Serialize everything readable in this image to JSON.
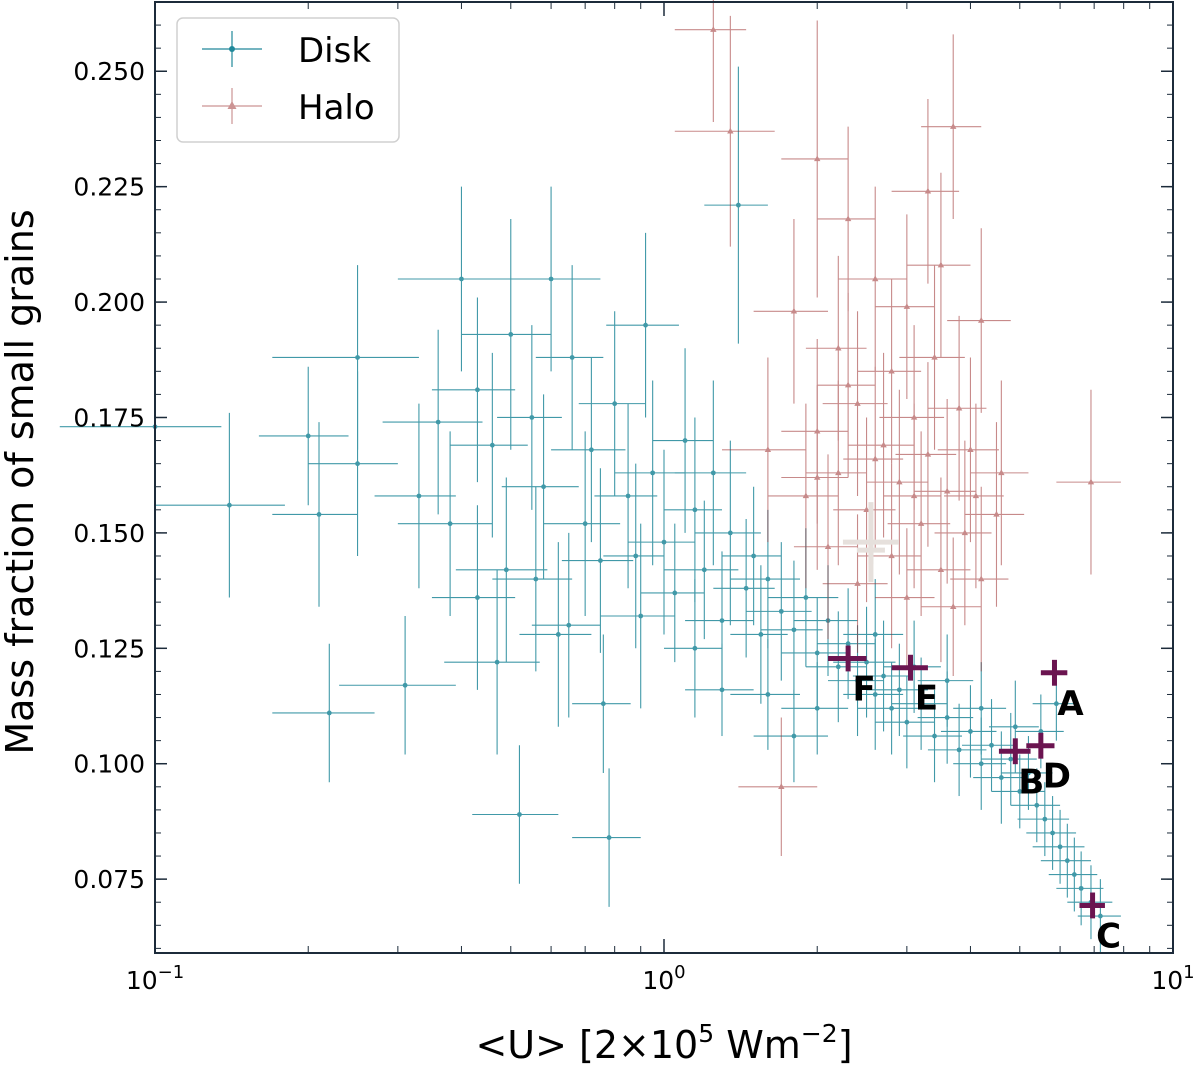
{
  "chart_data": {
    "type": "scatter",
    "title": "",
    "xlabel": "<U> [2×10",
    "xlabel_exp": "5",
    "xlabel_unit": " Wm",
    "xlabel_unit_exp": "−2",
    "xlabel_end": "]",
    "ylabel": "Mass fraction of small grains",
    "xscale": "log",
    "xlim": [
      0.1,
      10
    ],
    "ylim": [
      0.059,
      0.265
    ],
    "grid": false,
    "legend_position": "top-left",
    "x_ticks": [
      {
        "value": 0.1,
        "base": "10",
        "exp": "−1"
      },
      {
        "value": 1,
        "base": "10",
        "exp": "0"
      },
      {
        "value": 10,
        "base": "10",
        "exp": "1"
      }
    ],
    "y_ticks": [
      "0.075",
      "0.100",
      "0.125",
      "0.150",
      "0.175",
      "0.200",
      "0.225",
      "0.250"
    ],
    "series": [
      {
        "name": "Disk",
        "color": "#20889a",
        "marker": "circle",
        "points": [
          [
            0.1,
            0.173,
            0.035,
            0.02
          ],
          [
            0.14,
            0.156,
            0.04,
            0.02
          ],
          [
            0.2,
            0.171,
            0.04,
            0.015
          ],
          [
            0.21,
            0.154,
            0.04,
            0.02
          ],
          [
            0.22,
            0.111,
            0.05,
            0.015
          ],
          [
            0.25,
            0.188,
            0.08,
            0.02
          ],
          [
            0.25,
            0.165,
            0.05,
            0.02
          ],
          [
            0.31,
            0.117,
            0.08,
            0.015
          ],
          [
            0.33,
            0.158,
            0.06,
            0.02
          ],
          [
            0.36,
            0.174,
            0.08,
            0.02
          ],
          [
            0.4,
            0.205,
            0.1,
            0.02
          ],
          [
            0.43,
            0.181,
            0.08,
            0.02
          ],
          [
            0.46,
            0.169,
            0.08,
            0.02
          ],
          [
            0.49,
            0.142,
            0.1,
            0.02
          ],
          [
            0.5,
            0.193,
            0.1,
            0.025
          ],
          [
            0.52,
            0.089,
            0.1,
            0.015
          ],
          [
            0.55,
            0.175,
            0.08,
            0.02
          ],
          [
            0.58,
            0.16,
            0.1,
            0.02
          ],
          [
            0.6,
            0.205,
            0.15,
            0.02
          ],
          [
            0.62,
            0.128,
            0.1,
            0.02
          ],
          [
            0.66,
            0.188,
            0.1,
            0.02
          ],
          [
            0.7,
            0.152,
            0.12,
            0.02
          ],
          [
            0.72,
            0.168,
            0.12,
            0.02
          ],
          [
            0.76,
            0.113,
            0.1,
            0.015
          ],
          [
            0.78,
            0.084,
            0.12,
            0.015
          ],
          [
            0.8,
            0.178,
            0.12,
            0.02
          ],
          [
            0.85,
            0.158,
            0.12,
            0.02
          ],
          [
            0.88,
            0.145,
            0.12,
            0.02
          ],
          [
            0.92,
            0.195,
            0.15,
            0.02
          ],
          [
            0.95,
            0.163,
            0.15,
            0.02
          ],
          [
            1.0,
            0.148,
            0.15,
            0.02
          ],
          [
            1.05,
            0.137,
            0.15,
            0.015
          ],
          [
            1.1,
            0.17,
            0.15,
            0.02
          ],
          [
            1.15,
            0.155,
            0.15,
            0.02
          ],
          [
            1.2,
            0.142,
            0.2,
            0.015
          ],
          [
            1.25,
            0.163,
            0.2,
            0.02
          ],
          [
            1.3,
            0.131,
            0.2,
            0.015
          ],
          [
            1.35,
            0.15,
            0.2,
            0.02
          ],
          [
            1.4,
            0.221,
            0.2,
            0.03
          ],
          [
            1.45,
            0.138,
            0.2,
            0.015
          ],
          [
            1.5,
            0.145,
            0.2,
            0.015
          ],
          [
            1.55,
            0.128,
            0.2,
            0.015
          ],
          [
            1.6,
            0.14,
            0.25,
            0.015
          ],
          [
            1.7,
            0.133,
            0.25,
            0.015
          ],
          [
            1.8,
            0.129,
            0.25,
            0.015
          ],
          [
            1.9,
            0.136,
            0.3,
            0.015
          ],
          [
            2.0,
            0.124,
            0.3,
            0.012
          ],
          [
            2.1,
            0.131,
            0.3,
            0.012
          ],
          [
            2.2,
            0.121,
            0.3,
            0.012
          ],
          [
            2.3,
            0.126,
            0.3,
            0.012
          ],
          [
            2.4,
            0.118,
            0.3,
            0.012
          ],
          [
            2.5,
            0.122,
            0.35,
            0.012
          ],
          [
            2.6,
            0.115,
            0.35,
            0.012
          ],
          [
            2.7,
            0.119,
            0.35,
            0.012
          ],
          [
            2.8,
            0.112,
            0.4,
            0.01
          ],
          [
            2.9,
            0.116,
            0.4,
            0.01
          ],
          [
            3.0,
            0.109,
            0.4,
            0.01
          ],
          [
            3.2,
            0.113,
            0.4,
            0.01
          ],
          [
            3.4,
            0.106,
            0.45,
            0.01
          ],
          [
            3.6,
            0.11,
            0.45,
            0.01
          ],
          [
            3.8,
            0.103,
            0.5,
            0.01
          ],
          [
            4.0,
            0.107,
            0.5,
            0.01
          ],
          [
            4.2,
            0.1,
            0.5,
            0.01
          ],
          [
            4.4,
            0.104,
            0.55,
            0.01
          ],
          [
            4.6,
            0.097,
            0.55,
            0.01
          ],
          [
            4.8,
            0.101,
            0.6,
            0.01
          ],
          [
            5.0,
            0.094,
            0.6,
            0.008
          ],
          [
            5.2,
            0.098,
            0.6,
            0.008
          ],
          [
            5.4,
            0.091,
            0.6,
            0.008
          ],
          [
            5.6,
            0.088,
            0.65,
            0.008
          ],
          [
            5.8,
            0.085,
            0.65,
            0.008
          ],
          [
            6.0,
            0.082,
            0.7,
            0.008
          ],
          [
            6.2,
            0.079,
            0.7,
            0.008
          ],
          [
            6.4,
            0.076,
            0.7,
            0.008
          ],
          [
            6.6,
            0.073,
            0.7,
            0.008
          ],
          [
            6.9,
            0.07,
            0.7,
            0.008
          ],
          [
            7.2,
            0.067,
            0.7,
            0.008
          ],
          [
            5.9,
            0.113,
            0.6,
            0.008
          ],
          [
            5.5,
            0.107,
            0.6,
            0.008
          ],
          [
            1.8,
            0.106,
            0.3,
            0.01
          ],
          [
            2.0,
            0.112,
            0.3,
            0.01
          ],
          [
            1.3,
            0.116,
            0.2,
            0.01
          ],
          [
            0.56,
            0.14,
            0.1,
            0.02
          ],
          [
            0.47,
            0.122,
            0.1,
            0.02
          ],
          [
            0.38,
            0.152,
            0.08,
            0.02
          ],
          [
            0.43,
            0.136,
            0.08,
            0.02
          ],
          [
            0.65,
            0.13,
            0.1,
            0.02
          ],
          [
            0.9,
            0.132,
            0.15,
            0.02
          ],
          [
            1.15,
            0.125,
            0.15,
            0.015
          ],
          [
            0.75,
            0.144,
            0.12,
            0.02
          ],
          [
            1.6,
            0.115,
            0.25,
            0.012
          ],
          [
            2.6,
            0.128,
            0.35,
            0.012
          ],
          [
            3.1,
            0.121,
            0.4,
            0.01
          ],
          [
            4.2,
            0.112,
            0.5,
            0.01
          ],
          [
            3.6,
            0.118,
            0.45,
            0.01
          ],
          [
            4.9,
            0.108,
            0.55,
            0.01
          ]
        ]
      },
      {
        "name": "Halo",
        "color": "#9b2b2b",
        "marker": "triangle",
        "points": [
          [
            1.25,
            0.259,
            0.2,
            0.02
          ],
          [
            1.35,
            0.237,
            0.3,
            0.025
          ],
          [
            2.0,
            0.231,
            0.3,
            0.03
          ],
          [
            2.3,
            0.218,
            0.3,
            0.02
          ],
          [
            3.3,
            0.224,
            0.5,
            0.02
          ],
          [
            3.7,
            0.238,
            0.5,
            0.02
          ],
          [
            2.6,
            0.205,
            0.4,
            0.02
          ],
          [
            3.0,
            0.199,
            0.4,
            0.02
          ],
          [
            1.8,
            0.198,
            0.3,
            0.02
          ],
          [
            4.2,
            0.196,
            0.6,
            0.02
          ],
          [
            2.2,
            0.19,
            0.3,
            0.02
          ],
          [
            2.8,
            0.185,
            0.4,
            0.02
          ],
          [
            3.4,
            0.188,
            0.5,
            0.02
          ],
          [
            2.4,
            0.178,
            0.35,
            0.02
          ],
          [
            3.1,
            0.175,
            0.45,
            0.02
          ],
          [
            3.8,
            0.177,
            0.5,
            0.02
          ],
          [
            2.0,
            0.172,
            0.3,
            0.02
          ],
          [
            2.7,
            0.169,
            0.4,
            0.02
          ],
          [
            3.3,
            0.167,
            0.45,
            0.02
          ],
          [
            4.0,
            0.168,
            0.55,
            0.02
          ],
          [
            4.6,
            0.163,
            0.6,
            0.02
          ],
          [
            6.9,
            0.161,
            1.0,
            0.02
          ],
          [
            2.2,
            0.163,
            0.3,
            0.02
          ],
          [
            2.9,
            0.161,
            0.4,
            0.02
          ],
          [
            3.6,
            0.159,
            0.5,
            0.02
          ],
          [
            1.9,
            0.158,
            0.3,
            0.02
          ],
          [
            2.5,
            0.155,
            0.35,
            0.02
          ],
          [
            3.2,
            0.152,
            0.45,
            0.02
          ],
          [
            3.9,
            0.15,
            0.5,
            0.02
          ],
          [
            4.5,
            0.154,
            0.6,
            0.02
          ],
          [
            2.1,
            0.147,
            0.3,
            0.02
          ],
          [
            2.8,
            0.145,
            0.4,
            0.02
          ],
          [
            3.5,
            0.142,
            0.5,
            0.02
          ],
          [
            4.2,
            0.14,
            0.55,
            0.02
          ],
          [
            2.4,
            0.139,
            0.35,
            0.015
          ],
          [
            3.0,
            0.136,
            0.4,
            0.015
          ],
          [
            3.7,
            0.134,
            0.5,
            0.015
          ],
          [
            1.7,
            0.095,
            0.3,
            0.015
          ],
          [
            1.6,
            0.168,
            0.3,
            0.02
          ],
          [
            2.3,
            0.182,
            0.3,
            0.02
          ],
          [
            3.5,
            0.208,
            0.5,
            0.02
          ],
          [
            2.6,
            0.166,
            0.35,
            0.02
          ],
          [
            3.1,
            0.158,
            0.4,
            0.02
          ],
          [
            2.0,
            0.162,
            0.3,
            0.02
          ],
          [
            4.1,
            0.158,
            0.55,
            0.02
          ]
        ]
      }
    ],
    "highlight_point": {
      "x": 2.55,
      "y": 0.148,
      "color": "#e6e0dc"
    },
    "labeled_regions": [
      {
        "label": "A",
        "x": 5.85,
        "y": 0.1197,
        "dx": 0.35,
        "dy": 0.0028
      },
      {
        "label": "B",
        "x": 4.9,
        "y": 0.1027,
        "dx": 0.35,
        "dy": 0.0028
      },
      {
        "label": "C",
        "x": 6.95,
        "y": 0.0693,
        "dx": 0.4,
        "dy": 0.0028
      },
      {
        "label": "D",
        "x": 5.5,
        "y": 0.1039,
        "dx": 0.35,
        "dy": 0.0028
      },
      {
        "label": "E",
        "x": 3.05,
        "y": 0.1208,
        "dx": 0.25,
        "dy": 0.0028
      },
      {
        "label": "F",
        "x": 2.3,
        "y": 0.1228,
        "dx": 0.2,
        "dy": 0.0028
      }
    ]
  }
}
